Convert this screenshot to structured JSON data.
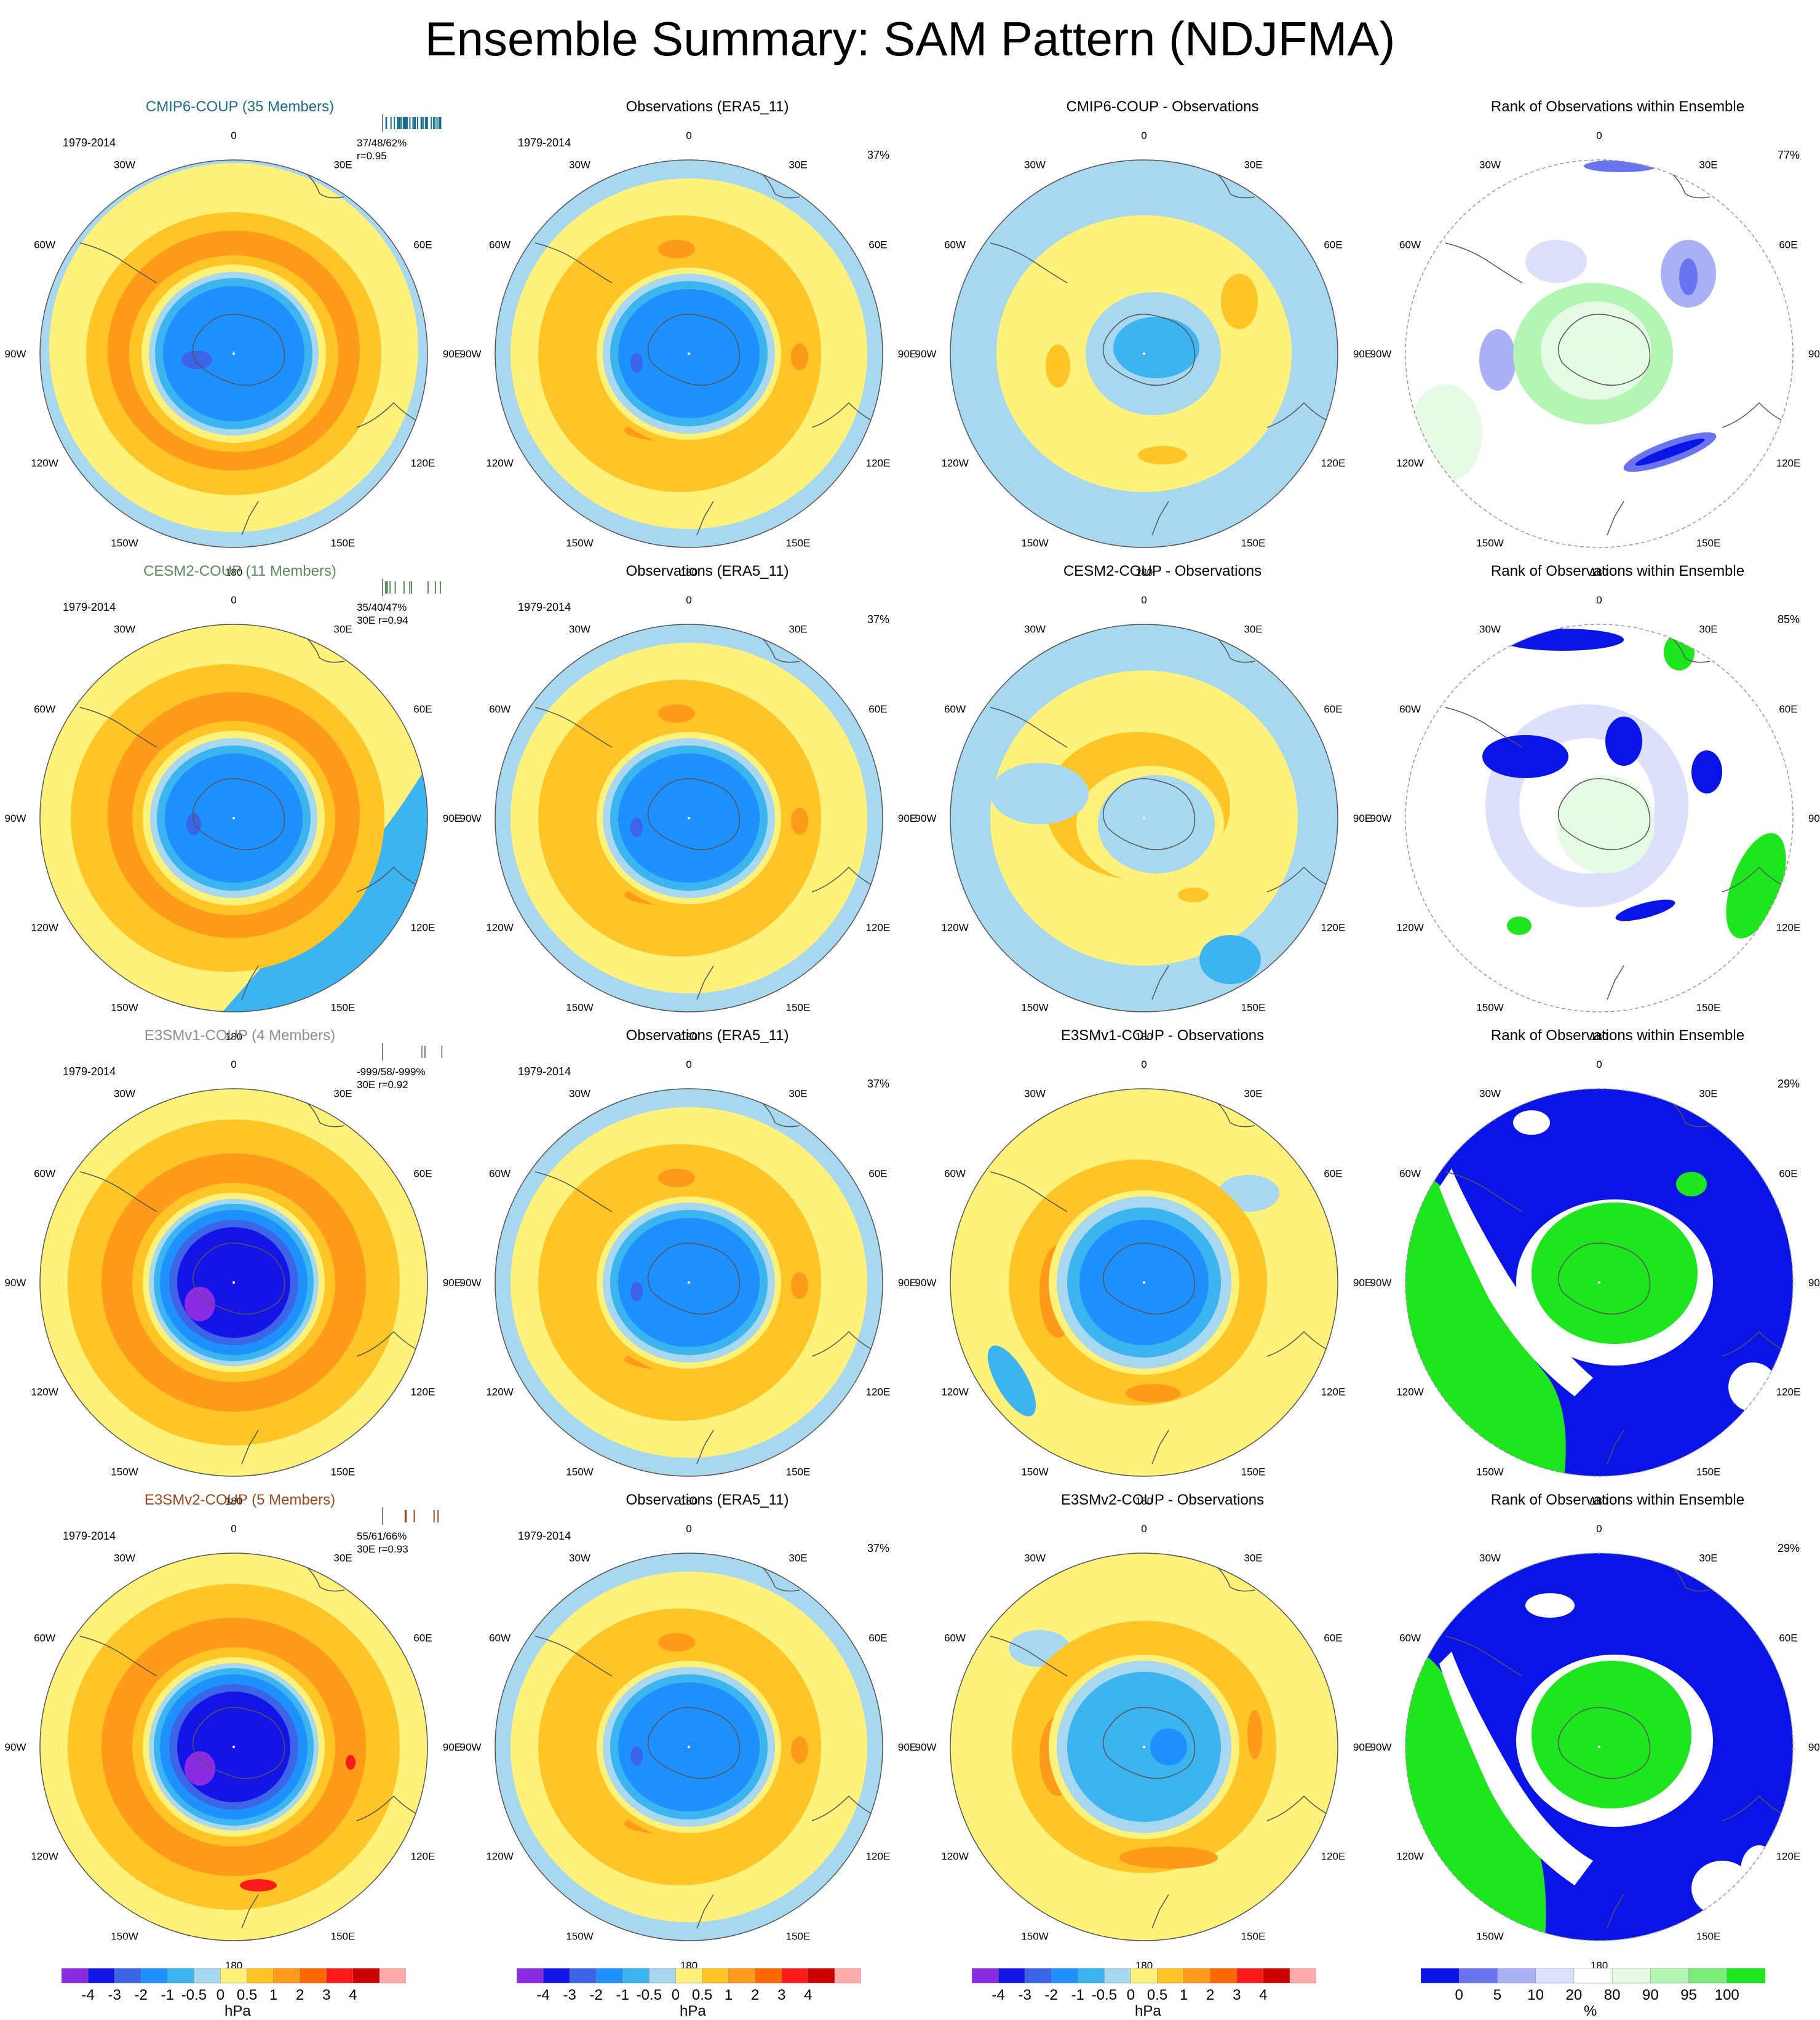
{
  "figure": {
    "title": "Ensemble Summary: SAM Pattern (NDJFMA)"
  },
  "map_labels": {
    "lon": [
      "0",
      "30E",
      "60E",
      "90E",
      "120E",
      "150E",
      "180",
      "150W",
      "120W",
      "90W",
      "60W",
      "30W"
    ]
  },
  "rows": [
    {
      "model": {
        "title": "CMIP6-COUP (35 Members)",
        "color": "#1b6f8c",
        "period": "1979-2014",
        "stats_line1": "37/48/62%",
        "stats_line2": "r=0.95",
        "rug_color": "#1b6f8c"
      },
      "obs": {
        "title": "Observations (ERA5_11)",
        "period": "1979-2014",
        "pct": "37%"
      },
      "diff": {
        "title": "CMIP6-COUP - Observations"
      },
      "rank": {
        "title": "Rank of Observations within Ensemble",
        "pct": "77%"
      }
    },
    {
      "model": {
        "title": "CESM2-COUP (11 Members)",
        "color": "#5b8a5e",
        "period": "1979-2014",
        "stats_line1": "35/40/47%",
        "stats_line2": "30E r=0.94",
        "rug_color": "#5b8a5e"
      },
      "obs": {
        "title": "Observations (ERA5_11)",
        "period": "1979-2014",
        "pct": "37%"
      },
      "diff": {
        "title": "CESM2-COUP - Observations"
      },
      "rank": {
        "title": "Rank of Observations within Ensemble",
        "pct": "85%"
      }
    },
    {
      "model": {
        "title": "E3SMv1-COUP (4 Members)",
        "color": "#8e8e8e",
        "period": "1979-2014",
        "stats_line1": "-999/58/-999%",
        "stats_line2": "30E r=0.92",
        "rug_color": "#8e8e8e"
      },
      "obs": {
        "title": "Observations (ERA5_11)",
        "period": "1979-2014",
        "pct": "37%"
      },
      "diff": {
        "title": "E3SMv1-COUP - Observations"
      },
      "rank": {
        "title": "Rank of Observations within Ensemble",
        "pct": "29%"
      }
    },
    {
      "model": {
        "title": "E3SMv2-COUP (5 Members)",
        "color": "#a0471b",
        "period": "1979-2014",
        "stats_line1": "55/61/66%",
        "stats_line2": "30E r=0.93",
        "rug_color": "#a0471b"
      },
      "obs": {
        "title": "Observations (ERA5_11)",
        "period": "1979-2014",
        "pct": "37%"
      },
      "diff": {
        "title": "E3SMv2-COUP - Observations"
      },
      "rank": {
        "title": "Rank of Observations within Ensemble",
        "pct": "29%"
      }
    }
  ],
  "chart_data": [
    {
      "type": "heatmap",
      "description_of_panels": "4x4 grid of south polar stereographic maps; columns: model SAM pattern, observed SAM pattern, model minus observations, rank of observations within ensemble",
      "colorbar_hpa": {
        "unit": "hPa",
        "tick_labels": [
          "-4",
          "-3",
          "-2",
          "-1",
          "-0.5",
          "0",
          "0.5",
          "1",
          "2",
          "3",
          "4"
        ],
        "colors": [
          "#8b2be2",
          "#1414e6",
          "#3c64e6",
          "#1e90ff",
          "#3cb4f0",
          "#a8d8f0",
          "#fff27a",
          "#ffc425",
          "#ff9a1a",
          "#ff6a00",
          "#ff1a1a",
          "#cc0000",
          "#ffaaaa"
        ]
      },
      "colorbar_rank": {
        "unit": "%",
        "tick_labels": [
          "0",
          "5",
          "10",
          "20",
          "80",
          "90",
          "95",
          "100"
        ],
        "colors": [
          "#0a14e6",
          "#6a74f0",
          "#aab0f5",
          "#dde0fa",
          "#ffffff",
          "#e6fbe6",
          "#b3f5b3",
          "#7aec7a",
          "#1ee61e"
        ]
      },
      "panel_fields": {
        "model_patterns": {
          "rows": [
            "CMIP6-COUP",
            "CESM2-COUP",
            "E3SMv1-COUP",
            "E3SMv2-COUP"
          ],
          "polar_cap_min_hpa": [
            -3,
            -3,
            -4,
            -4
          ],
          "midlat_ring_max_hpa": [
            1,
            1,
            1,
            2
          ]
        },
        "observations": {
          "polar_cap_min_hpa": -3,
          "midlat_ring_max_hpa": 1
        },
        "differences": {
          "rows": [
            "CMIP6-COUP",
            "CESM2-COUP",
            "E3SMv1-COUP",
            "E3SMv2-COUP"
          ],
          "polar_cap_hpa": [
            -1,
            0,
            -1,
            -1
          ],
          "midlat_hpa": [
            0.5,
            0.5,
            1,
            1
          ]
        },
        "rank_dominant_pct": {
          "rows": [
            "CMIP6-COUP",
            "CESM2-COUP",
            "E3SMv1-COUP",
            "E3SMv2-COUP"
          ],
          "polar": [
            "80-90",
            "80-90",
            "100",
            "100"
          ],
          "ring": [
            "20-80",
            "0-10",
            "0",
            "0"
          ]
        }
      }
    }
  ]
}
